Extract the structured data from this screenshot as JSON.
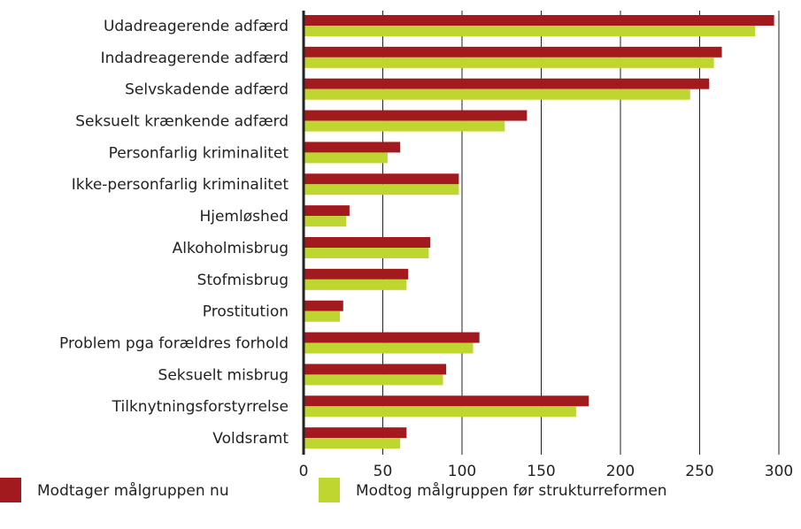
{
  "chart_data": {
    "type": "barh",
    "categories": [
      "Udadreagerende adfærd",
      "Indadreagerende adfærd",
      "Selvskadende adfærd",
      "Seksuelt krænkende adfærd",
      "Personfarlig kriminalitet",
      "Ikke-personfarlig kriminalitet",
      "Hjemløshed",
      "Alkoholmisbrug",
      "Stofmisbrug",
      "Prostitution",
      "Problem pga forældres forhold",
      "Seksuelt misbrug",
      "Tilknytningsforstyrrelse",
      "Voldsramt"
    ],
    "series": [
      {
        "name": "Modtager målgruppen nu",
        "color": "#a31a1e",
        "values": [
          297,
          264,
          256,
          141,
          61,
          98,
          29,
          80,
          66,
          25,
          111,
          90,
          180,
          65
        ]
      },
      {
        "name": "Modtog målgruppen før strukturreformen",
        "color": "#bfd630",
        "values": [
          285,
          259,
          244,
          127,
          53,
          98,
          27,
          79,
          65,
          23,
          107,
          88,
          172,
          61
        ]
      }
    ],
    "xlim": [
      0,
      300
    ],
    "xticks": [
      0,
      50,
      100,
      150,
      200,
      250,
      300
    ],
    "grid": true,
    "legend": "bottom"
  }
}
